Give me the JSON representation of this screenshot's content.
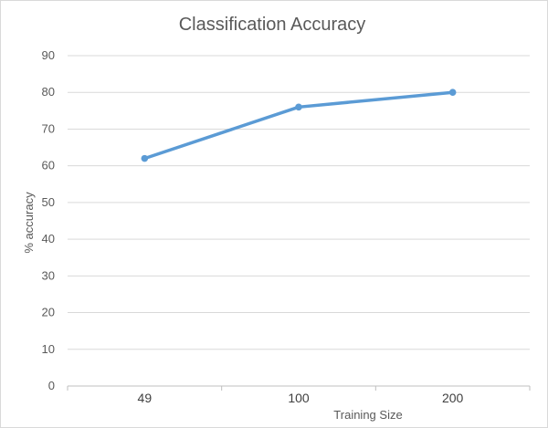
{
  "chart_data": {
    "type": "line",
    "title": "Classification Accuracy",
    "xlabel": "Training Size",
    "ylabel": "% accuracy",
    "categories": [
      "49",
      "100",
      "200"
    ],
    "series": [
      {
        "values": [
          62,
          76,
          80
        ]
      }
    ],
    "ylim": [
      0,
      90
    ],
    "yticks": [
      0,
      10,
      20,
      30,
      40,
      50,
      60,
      70,
      80,
      90
    ],
    "grid": true,
    "legend": "none",
    "colors": {
      "line": "#5b9bd5",
      "grid": "#d9d9d9",
      "axis": "#bfbfbf",
      "text": "#595959"
    }
  }
}
